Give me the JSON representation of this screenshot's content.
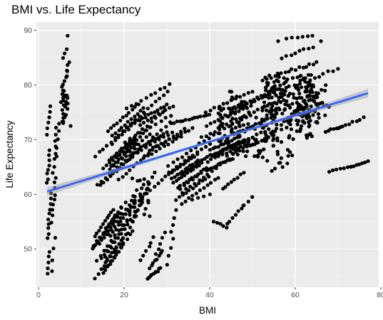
{
  "chart_data": {
    "type": "scatter",
    "title": "BMI vs. Life Expectancy",
    "xlabel": "BMI",
    "ylabel": "Life Expectancy",
    "xlim": [
      -0.5,
      79.5
    ],
    "ylim": [
      43.0,
      91.5
    ],
    "x_ticks": [
      0,
      20,
      40,
      60,
      80
    ],
    "y_ticks": [
      50,
      60,
      70,
      80,
      90
    ],
    "grid": true,
    "panel_background": "#EBEBEB",
    "point_color": "#000000",
    "trend_line": {
      "method": "linear regression with 95% confidence band",
      "color": "#3366FF",
      "band_color": "#999999",
      "x_start": 2.0,
      "y_start": 60.5,
      "x_end": 77.0,
      "y_end": 78.5,
      "band_halfwidth_ends": 0.8,
      "band_halfwidth_mid": 0.25
    },
    "point_clusters": [
      {
        "x_range": [
          1.5,
          3.5
        ],
        "y_range": [
          45,
          76
        ]
      },
      {
        "x_range": [
          3.0,
          5.0
        ],
        "y_range": [
          46,
          75
        ]
      },
      {
        "x_range": [
          5.0,
          8.0
        ],
        "y_range": [
          65,
          89
        ]
      },
      {
        "x_range": [
          12,
          20
        ],
        "y_range": [
          44,
          80
        ]
      },
      {
        "x_range": [
          18,
          28
        ],
        "y_range": [
          52,
          78
        ]
      },
      {
        "x_range": [
          24,
          30
        ],
        "y_range": [
          44,
          60
        ]
      },
      {
        "x_range": [
          26,
          40
        ],
        "y_range": [
          58,
          76
        ]
      },
      {
        "x_range": [
          40,
          52
        ],
        "y_range": [
          54,
          79
        ]
      },
      {
        "x_range": [
          52,
          68
        ],
        "y_range": [
          64,
          89
        ]
      },
      {
        "x_range": [
          66,
          78
        ],
        "y_range": [
          63,
          76
        ]
      }
    ]
  }
}
